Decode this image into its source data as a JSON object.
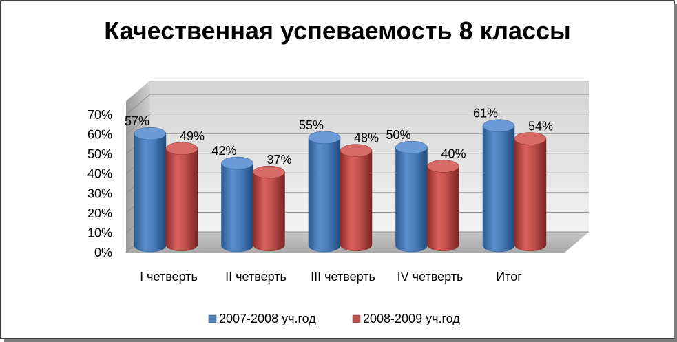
{
  "chart_data": {
    "type": "bar",
    "title": "Качественная успеваемость 8 классы",
    "categories": [
      "I четверть",
      "II четверть",
      "III четверть",
      "IV четверть",
      "Итог"
    ],
    "series": [
      {
        "name": "2007-2008 уч.год",
        "values": [
          57,
          42,
          55,
          50,
          61
        ],
        "color": "#4f81bd"
      },
      {
        "name": "2008-2009 уч.год",
        "values": [
          49,
          37,
          48,
          40,
          54
        ],
        "color": "#c0504d"
      }
    ],
    "y_ticks": [
      "0%",
      "10%",
      "20%",
      "30%",
      "40%",
      "50%",
      "60%",
      "70%"
    ],
    "ylim": [
      0,
      70
    ],
    "value_suffix": "%",
    "legend_position": "bottom",
    "grid": true,
    "style": "3d-cylinder"
  }
}
